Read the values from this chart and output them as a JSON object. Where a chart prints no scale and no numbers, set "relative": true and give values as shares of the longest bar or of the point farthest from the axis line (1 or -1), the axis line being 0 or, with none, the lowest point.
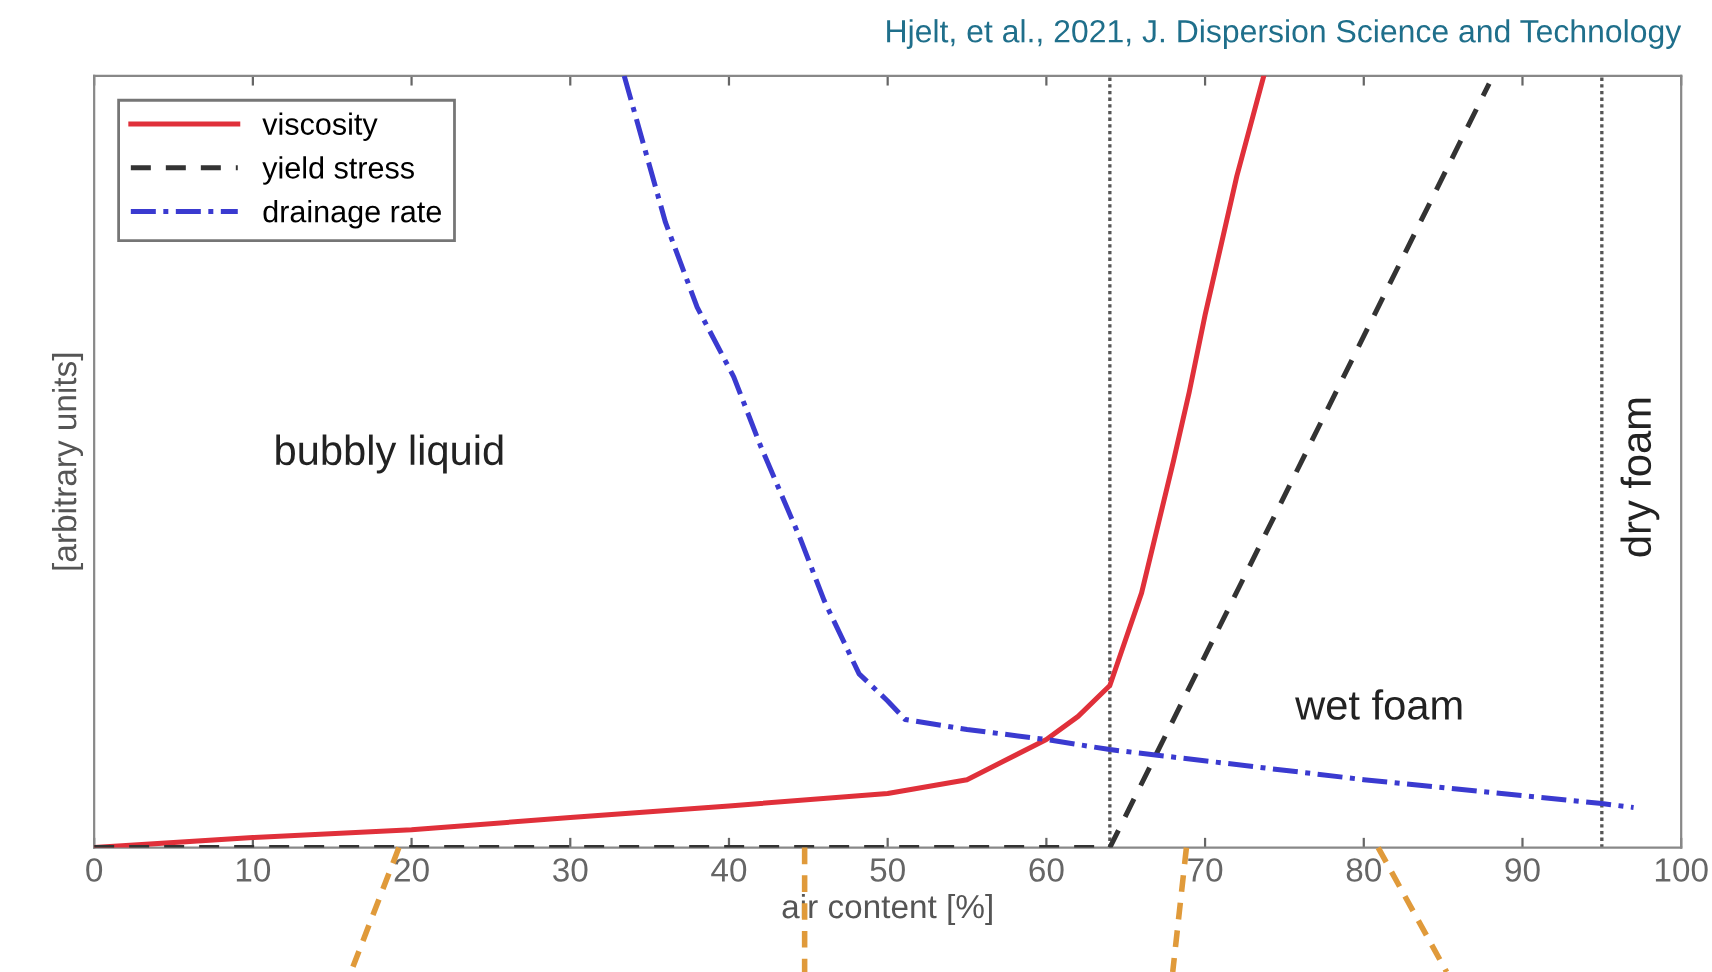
{
  "chart_data": {
    "type": "line",
    "relative": true,
    "xlabel": "air content [%]",
    "ylabel": "[arbitrary units]",
    "xlim": [
      0,
      100
    ],
    "xticks": [
      0,
      10,
      20,
      30,
      40,
      50,
      60,
      70,
      80,
      90,
      100
    ],
    "series": [
      {
        "name": "viscosity",
        "color": "#e0303a",
        "line_style": "solid",
        "x": [
          0,
          10,
          20,
          30,
          40,
          50,
          55,
          60,
          62,
          64,
          66,
          68,
          69,
          70,
          71,
          72,
          73.7
        ],
        "values": [
          0,
          0.013,
          0.023,
          0.039,
          0.054,
          0.07,
          0.088,
          0.14,
          0.17,
          0.21,
          0.33,
          0.5,
          0.59,
          0.69,
          0.78,
          0.87,
          1.0
        ]
      },
      {
        "name": "yield stress",
        "color": "#333333",
        "line_style": "dashed",
        "x": [
          0,
          64,
          87.9
        ],
        "values": [
          0,
          0,
          0.99
        ]
      },
      {
        "name": "drainage rate",
        "color": "#3a3ad0",
        "line_style": "dashdot",
        "x": [
          33.4,
          36,
          38,
          40.3,
          42,
          44.5,
          46,
          48.2,
          50,
          51.1,
          55,
          60,
          64,
          80,
          95,
          97
        ],
        "values": [
          1.0,
          0.81,
          0.7,
          0.61,
          0.52,
          0.4,
          0.32,
          0.225,
          0.19,
          0.166,
          0.153,
          0.14,
          0.127,
          0.088,
          0.057,
          0.052
        ]
      }
    ],
    "ref_lines": [
      {
        "axis": "x",
        "value": 64,
        "label": null,
        "color": "#555555",
        "line_style": "dotted"
      },
      {
        "axis": "x",
        "value": 95,
        "label": null,
        "color": "#555555",
        "line_style": "dotted"
      }
    ],
    "legend": "top left",
    "grid": false,
    "annotations": [
      "Hjelt, et al., 2021, J. Dispersion Science and Technology",
      "bubbly liquid",
      "wet foam",
      "dry foam"
    ]
  }
}
